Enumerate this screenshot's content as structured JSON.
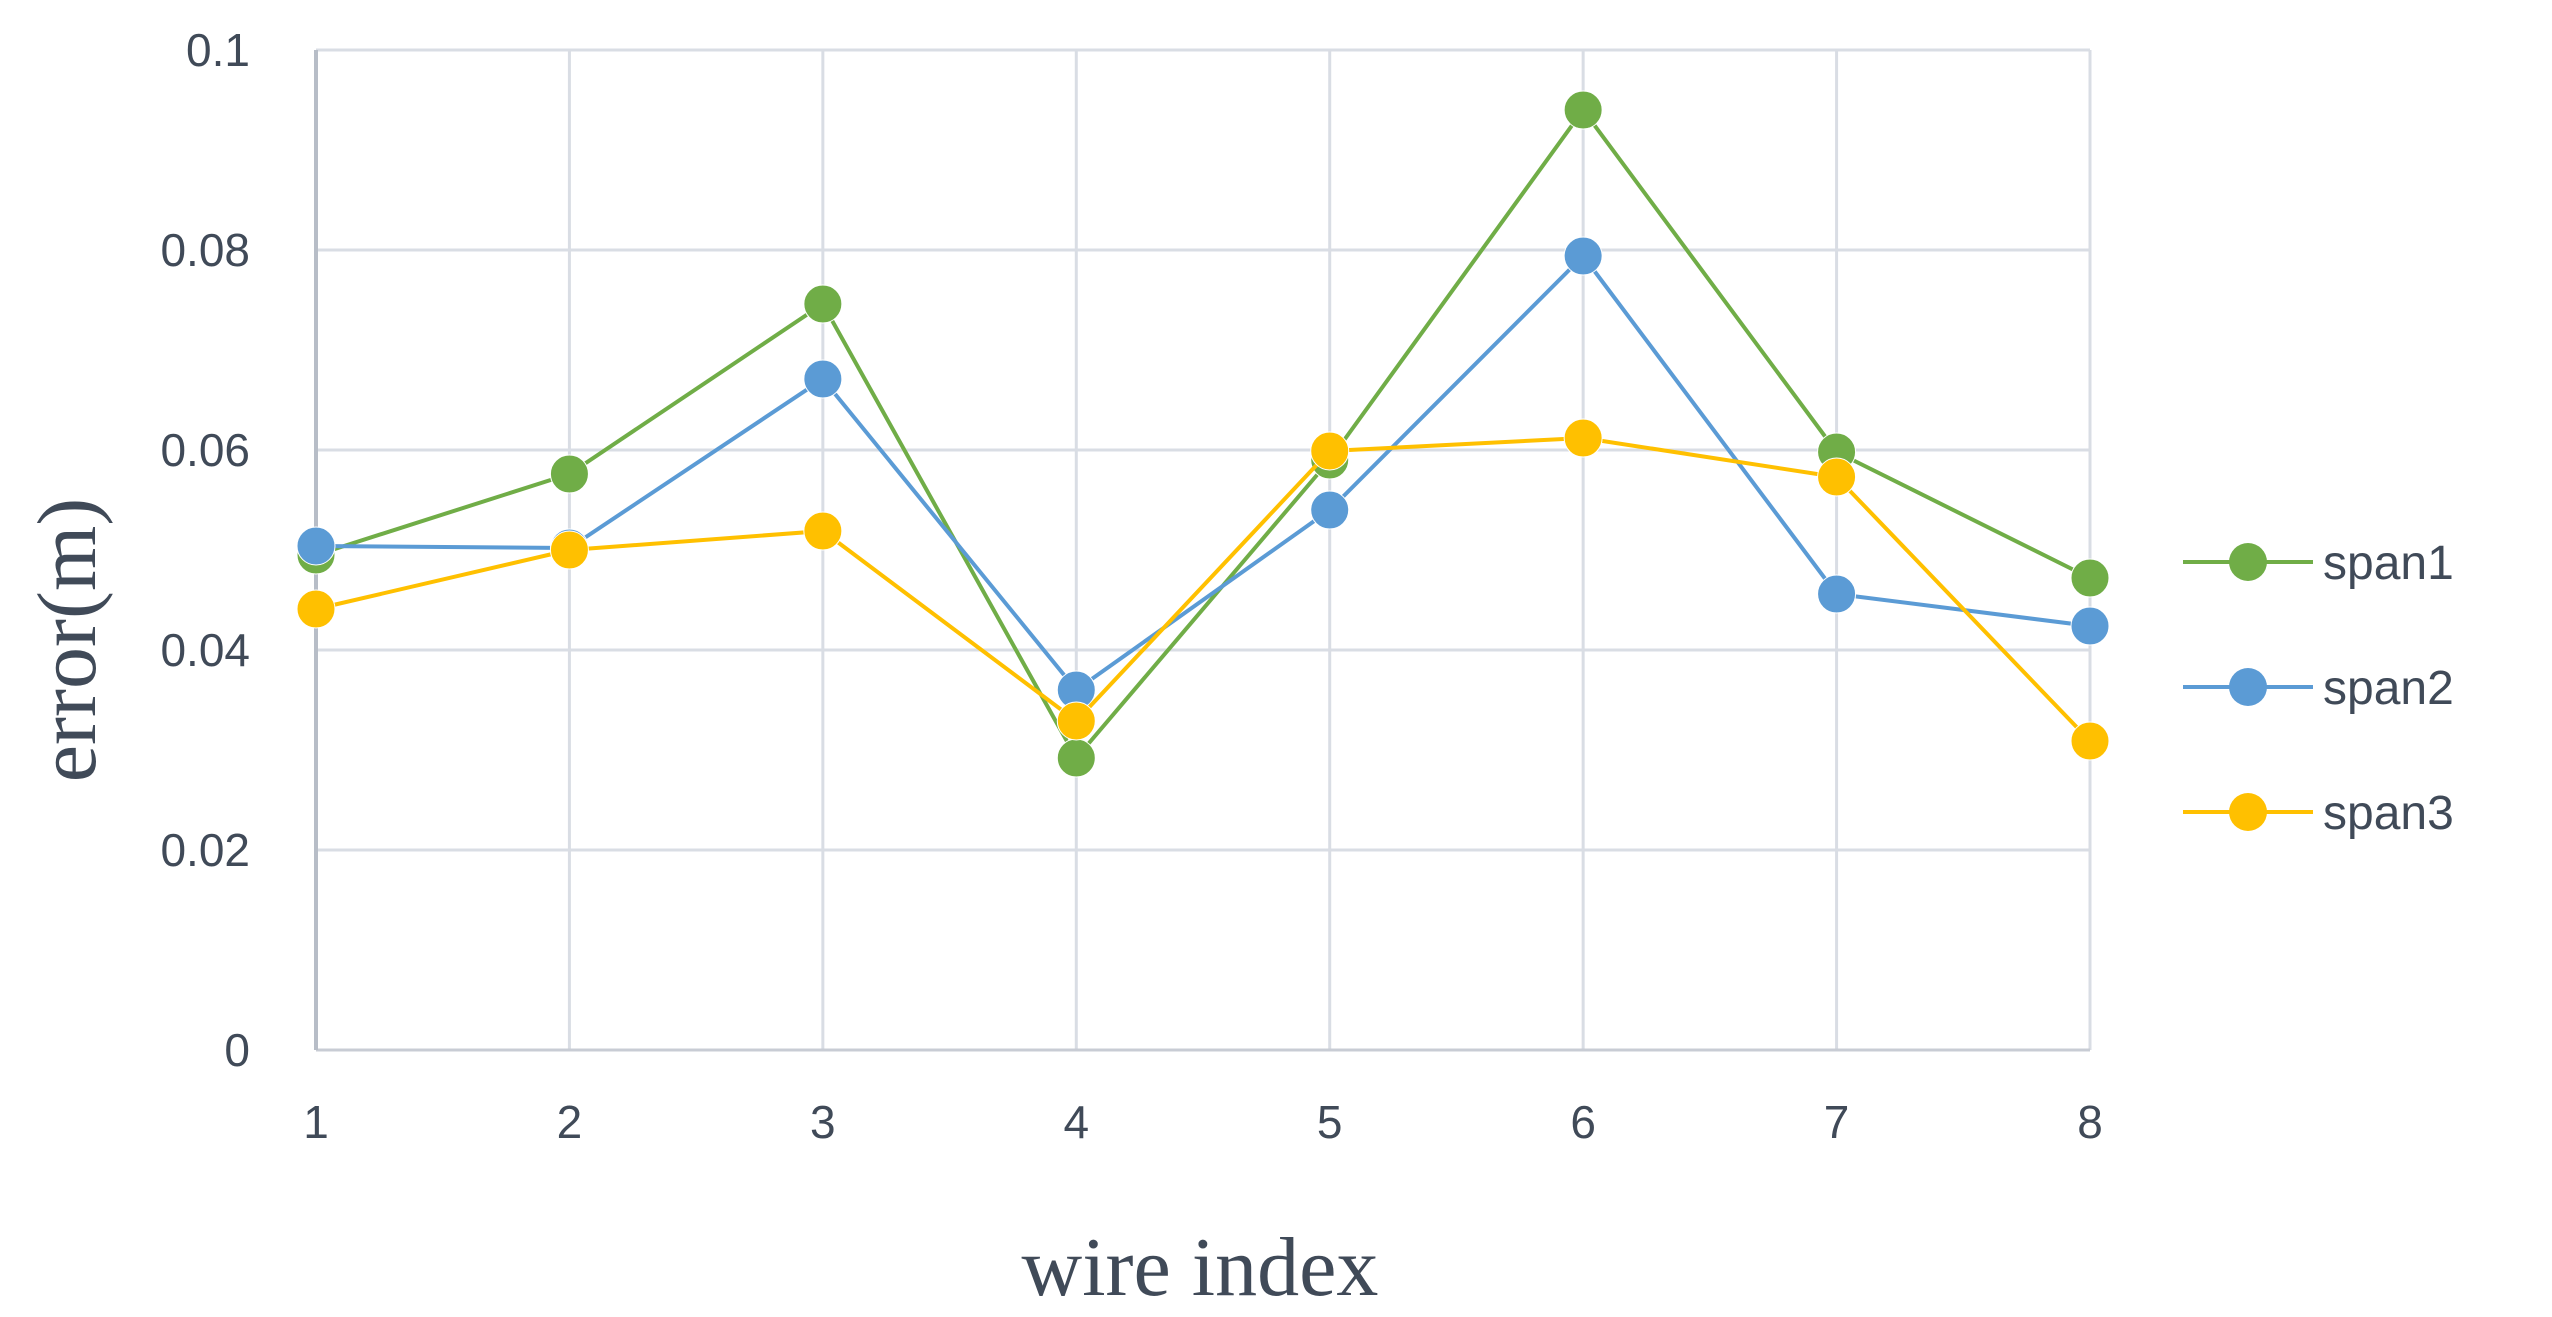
{
  "chart_data": {
    "type": "line",
    "title": "",
    "xlabel": "wire index",
    "ylabel": "error(m)",
    "categories": [
      "1",
      "2",
      "3",
      "4",
      "5",
      "6",
      "7",
      "8"
    ],
    "ylim": [
      0,
      0.1
    ],
    "yticks": [
      "0",
      "0.02",
      "0.04",
      "0.06",
      "0.08",
      "0.1"
    ],
    "grid": true,
    "legend_position": "right",
    "series": [
      {
        "name": "span1",
        "color": "#70ad47",
        "values": [
          0.0495,
          0.0576,
          0.0746,
          0.0292,
          0.059,
          0.094,
          0.0598,
          0.0472
        ]
      },
      {
        "name": "span2",
        "color": "#5b9bd5",
        "values": [
          0.0504,
          0.0502,
          0.0671,
          0.036,
          0.054,
          0.0794,
          0.0456,
          0.0424
        ]
      },
      {
        "name": "span3",
        "color": "#ffc000",
        "values": [
          0.0441,
          0.05,
          0.0519,
          0.0329,
          0.0599,
          0.0612,
          0.0573,
          0.0309
        ]
      }
    ]
  }
}
